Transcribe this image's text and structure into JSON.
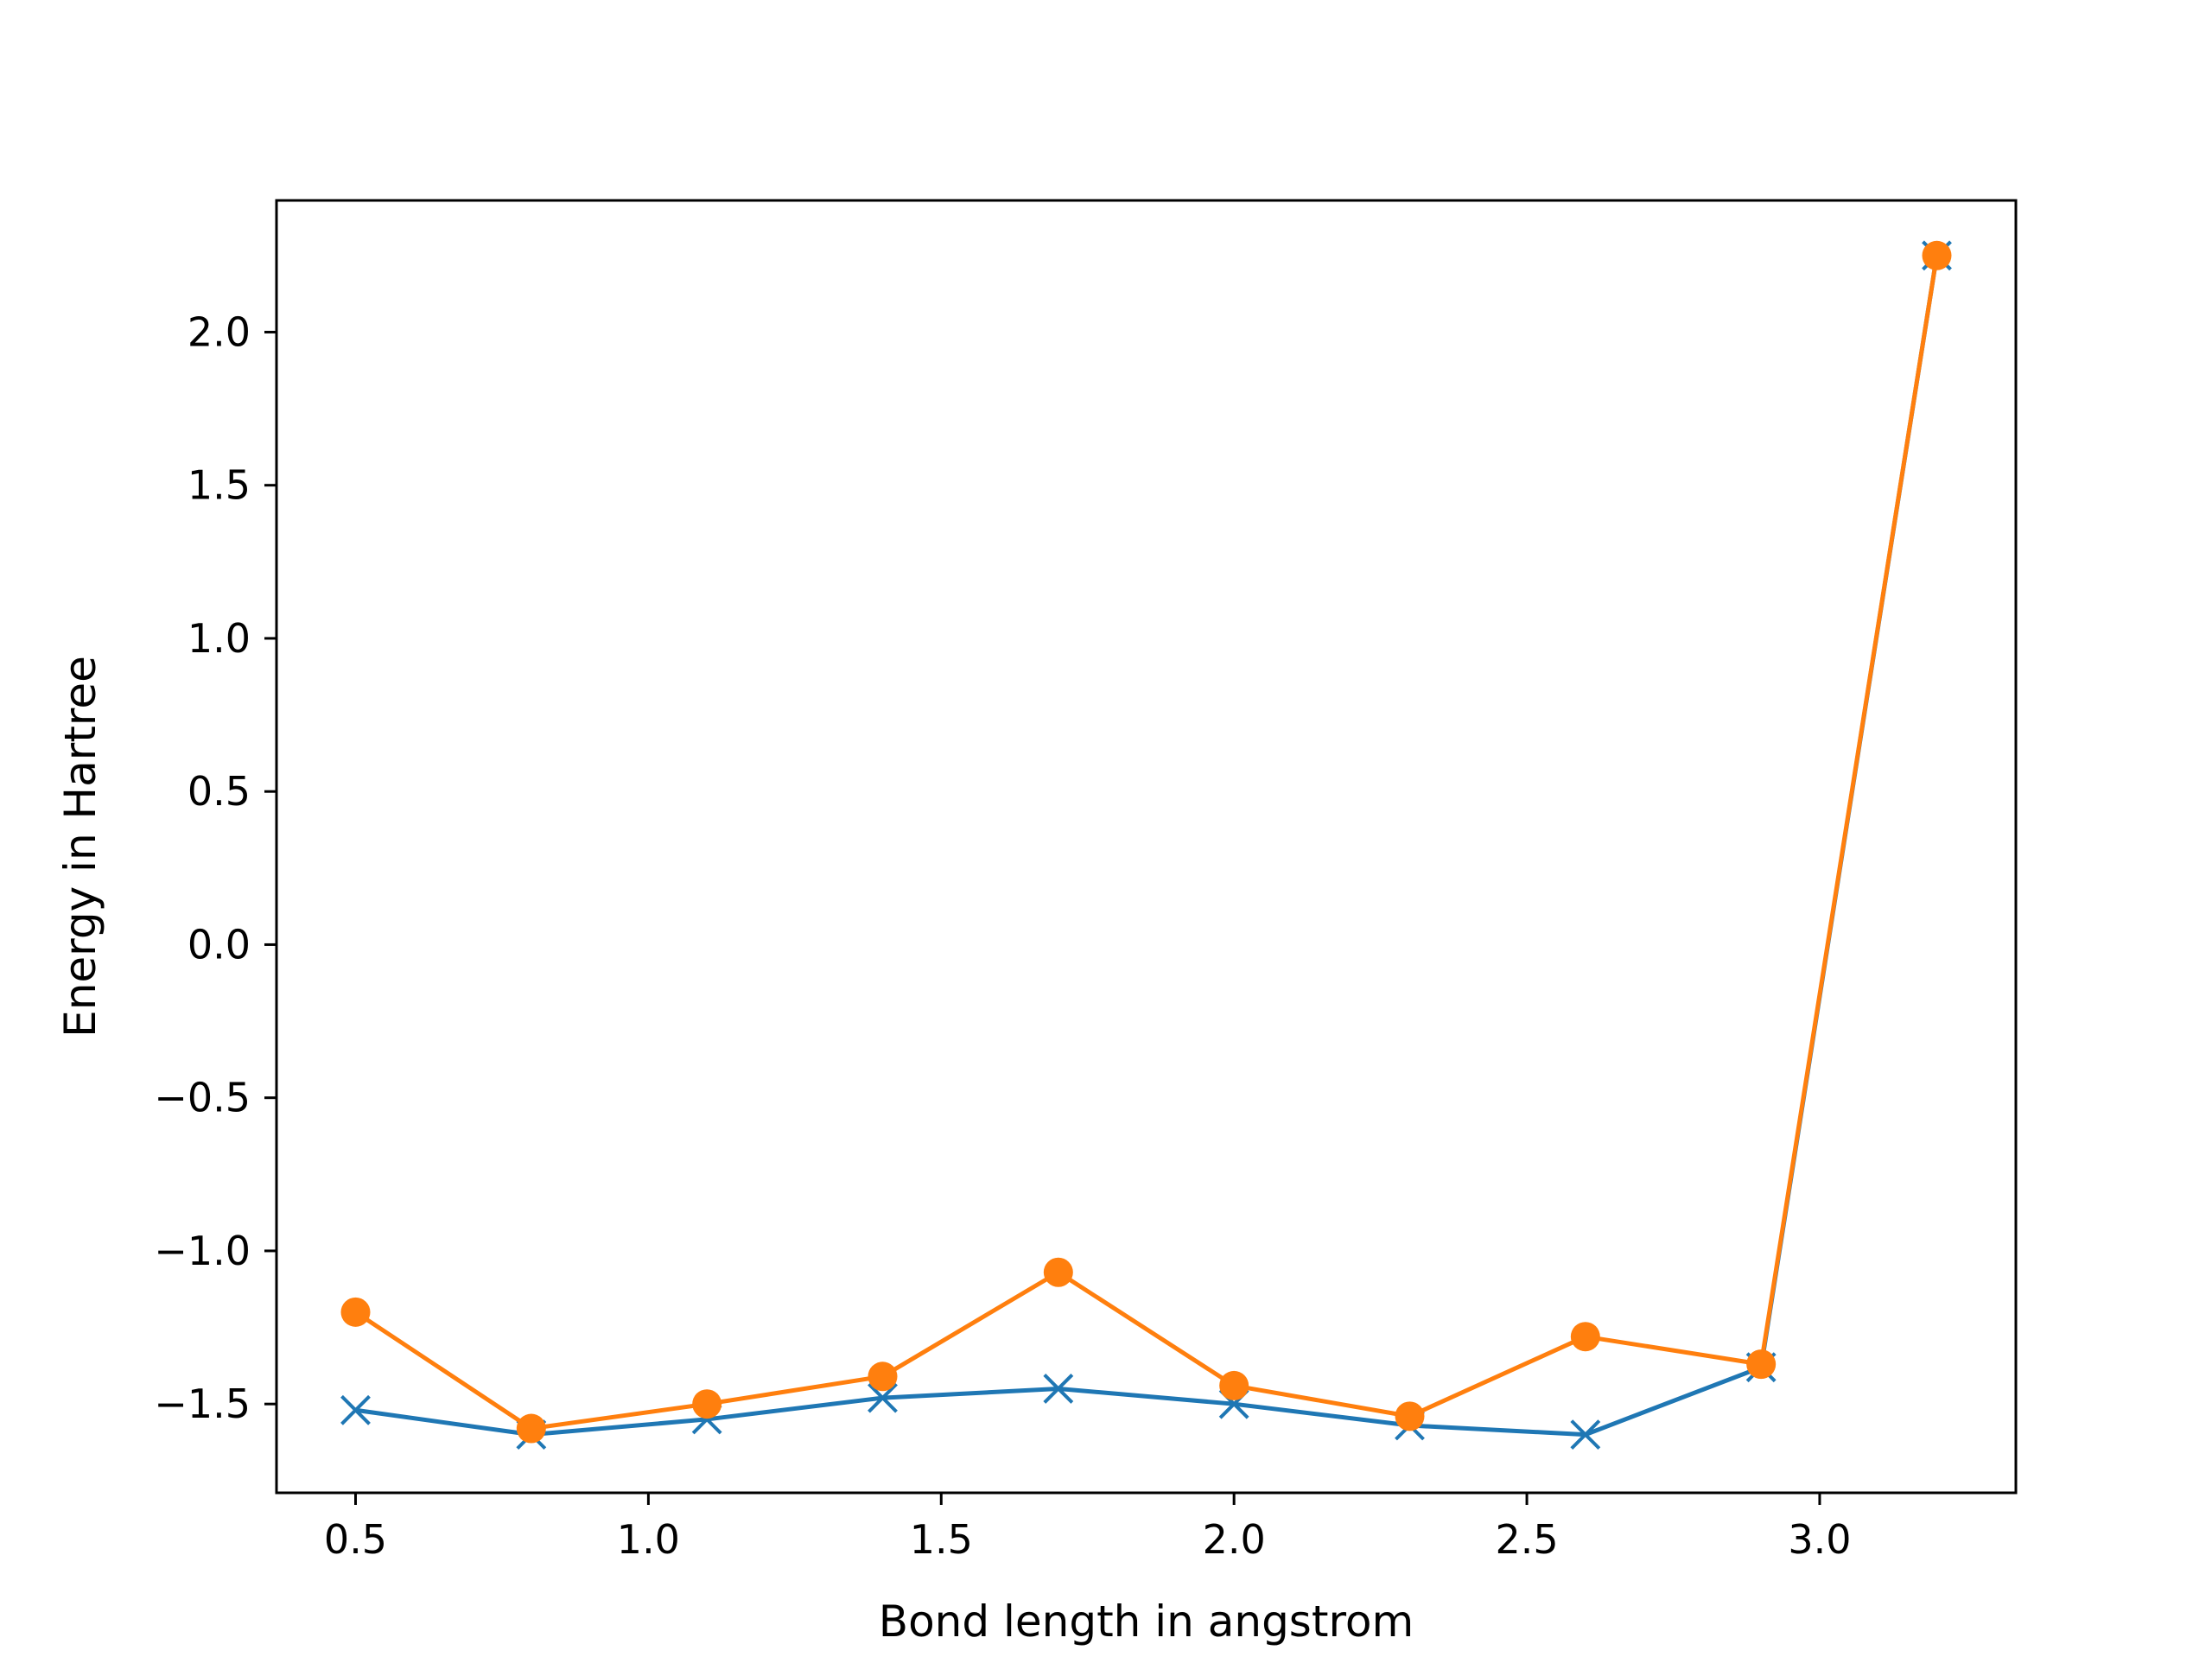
{
  "chart_data": {
    "type": "line",
    "title": "",
    "xlabel": "Bond length in angstrom",
    "ylabel": "Energy in Hartree",
    "xlim": [
      0.365,
      3.335
    ],
    "ylim": [
      -1.79,
      2.43
    ],
    "xticks": [
      0.5,
      1.0,
      1.5,
      2.0,
      2.5,
      3.0
    ],
    "xtick_labels": [
      "0.5",
      "1.0",
      "1.5",
      "2.0",
      "2.5",
      "3.0"
    ],
    "yticks": [
      -1.5,
      -1.0,
      -0.5,
      0.0,
      0.5,
      1.0,
      1.5,
      2.0
    ],
    "ytick_labels": [
      "−1.5",
      "−1.0",
      "−0.5",
      "0.0",
      "0.5",
      "1.0",
      "1.5",
      "2.0"
    ],
    "grid": false,
    "x": [
      0.5,
      0.8,
      1.1,
      1.4,
      1.7,
      2.0,
      2.3,
      2.6,
      2.9,
      3.2
    ],
    "series": [
      {
        "color": "#1f77b4",
        "marker": "x",
        "values": [
          -1.52,
          -1.6,
          -1.55,
          -1.48,
          -1.45,
          -1.5,
          -1.57,
          -1.6,
          -1.38,
          2.25
        ]
      },
      {
        "color": "#ff7f0e",
        "marker": "o",
        "values": [
          -1.2,
          -1.58,
          -1.5,
          -1.41,
          -1.07,
          -1.44,
          -1.54,
          -1.28,
          -1.37,
          2.25
        ]
      }
    ]
  }
}
